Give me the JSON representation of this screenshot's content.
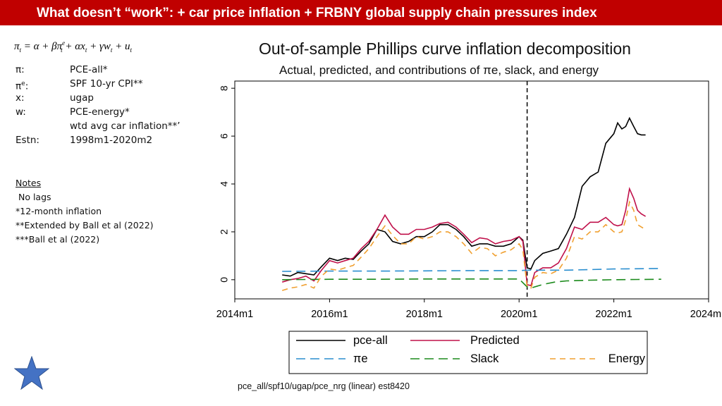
{
  "header": {
    "title": "What doesn’t “work”: + car price inflation + FRBNY global supply chain pressures index"
  },
  "definitions": [
    {
      "key": "π:",
      "value": "PCE-all*"
    },
    {
      "key": "πe:",
      "value": "SPF 10-yr CPI**"
    },
    {
      "key": "x:",
      "value": "ugap"
    },
    {
      "key": "w:",
      "value": "PCE-energy*"
    },
    {
      "key": "",
      "value": "wtd avg car inflation**’"
    },
    {
      "key": "Estn:",
      "value": "1998m1-2020m2"
    }
  ],
  "notes": {
    "heading": "Notes",
    "lines": [
      " No lags",
      "*12-month inflation",
      "**Extended by Ball et al (2022)",
      "***Ball et al (2022)"
    ]
  },
  "caption": "pce_all/spf10/ugap/pce_nrg (linear) est8420",
  "chart_data": {
    "type": "line",
    "title": "Out-of-sample Phillips curve inflation decomposition",
    "subtitle": "Actual, predicted, and contributions of πe, slack, and energy",
    "xlabel": "",
    "ylabel": "",
    "x_ticks": [
      "2014m1",
      "2016m1",
      "2018m1",
      "2020m1",
      "2022m1",
      "2024m1"
    ],
    "x_tick_values": [
      2014,
      2016,
      2018,
      2020,
      2022,
      2024
    ],
    "y_ticks": [
      0,
      2,
      4,
      6,
      8
    ],
    "xlim": [
      2014,
      2024
    ],
    "ylim": [
      -0.8,
      8.3
    ],
    "forecast_start": 2020.17,
    "series": [
      {
        "name": "pce-all",
        "color": "#000000",
        "dash": "solid",
        "x": [
          2015.0,
          2015.17,
          2015.33,
          2015.5,
          2015.67,
          2015.83,
          2016.0,
          2016.17,
          2016.33,
          2016.5,
          2016.67,
          2016.83,
          2017.0,
          2017.17,
          2017.33,
          2017.5,
          2017.67,
          2017.83,
          2018.0,
          2018.17,
          2018.33,
          2018.5,
          2018.67,
          2018.83,
          2019.0,
          2019.17,
          2019.33,
          2019.5,
          2019.67,
          2019.83,
          2020.0,
          2020.08,
          2020.17,
          2020.25,
          2020.33,
          2020.5,
          2020.67,
          2020.83,
          2021.0,
          2021.17,
          2021.33,
          2021.5,
          2021.67,
          2021.83,
          2022.0,
          2022.08,
          2022.17,
          2022.25,
          2022.33,
          2022.42,
          2022.5,
          2022.58,
          2022.67
        ],
        "y": [
          0.2,
          0.15,
          0.3,
          0.25,
          0.2,
          0.55,
          0.9,
          0.8,
          0.9,
          0.85,
          1.2,
          1.5,
          2.1,
          2.0,
          1.6,
          1.5,
          1.6,
          1.8,
          1.8,
          2.0,
          2.3,
          2.3,
          2.1,
          1.8,
          1.4,
          1.5,
          1.5,
          1.4,
          1.4,
          1.5,
          1.8,
          1.65,
          0.5,
          0.45,
          0.8,
          1.1,
          1.2,
          1.3,
          1.9,
          2.6,
          3.9,
          4.3,
          4.5,
          5.7,
          6.1,
          6.55,
          6.3,
          6.4,
          6.75,
          6.4,
          6.1,
          6.05,
          6.05
        ]
      },
      {
        "name": "Predicted",
        "color": "#c0104a",
        "dash": "solid",
        "x": [
          2015.0,
          2015.17,
          2015.33,
          2015.5,
          2015.67,
          2015.83,
          2016.0,
          2016.17,
          2016.33,
          2016.5,
          2016.67,
          2016.83,
          2017.0,
          2017.17,
          2017.33,
          2017.5,
          2017.67,
          2017.83,
          2018.0,
          2018.17,
          2018.33,
          2018.5,
          2018.67,
          2018.83,
          2019.0,
          2019.17,
          2019.33,
          2019.5,
          2019.67,
          2019.83,
          2020.0,
          2020.08,
          2020.17,
          2020.25,
          2020.33,
          2020.5,
          2020.67,
          2020.83,
          2021.0,
          2021.17,
          2021.33,
          2021.5,
          2021.67,
          2021.83,
          2022.0,
          2022.08,
          2022.17,
          2022.25,
          2022.33,
          2022.42,
          2022.5,
          2022.58,
          2022.67
        ],
        "y": [
          -0.1,
          0.0,
          0.05,
          0.15,
          -0.05,
          0.4,
          0.8,
          0.7,
          0.8,
          0.9,
          1.3,
          1.6,
          2.1,
          2.7,
          2.2,
          1.9,
          1.9,
          2.1,
          2.1,
          2.2,
          2.35,
          2.4,
          2.2,
          1.9,
          1.55,
          1.75,
          1.7,
          1.5,
          1.6,
          1.65,
          1.8,
          1.6,
          -0.2,
          -0.25,
          0.3,
          0.5,
          0.5,
          0.7,
          1.3,
          2.2,
          2.1,
          2.4,
          2.4,
          2.6,
          2.3,
          2.25,
          2.3,
          2.9,
          3.8,
          3.4,
          2.9,
          2.75,
          2.65
        ]
      },
      {
        "name": "πe",
        "color": "#2a8ecf",
        "dash": "long-dash",
        "x": [
          2015.0,
          2016.0,
          2017.0,
          2018.0,
          2019.0,
          2020.0,
          2020.17,
          2021.0,
          2022.0,
          2023.0
        ],
        "y": [
          0.35,
          0.36,
          0.36,
          0.37,
          0.38,
          0.38,
          0.4,
          0.4,
          0.45,
          0.47
        ]
      },
      {
        "name": "Slack",
        "color": "#1b8a1b",
        "dash": "long-dash",
        "x": [
          2015.0,
          2016.0,
          2017.0,
          2018.0,
          2019.0,
          2020.0,
          2020.17,
          2020.25,
          2020.33,
          2020.5,
          2020.75,
          2021.0,
          2021.5,
          2022.0,
          2022.5,
          2023.0
        ],
        "y": [
          0.0,
          0.02,
          0.02,
          0.03,
          0.03,
          0.03,
          -0.3,
          -0.35,
          -0.3,
          -0.2,
          -0.1,
          -0.05,
          -0.02,
          0.0,
          0.01,
          0.02
        ]
      },
      {
        "name": "Energy",
        "color": "#f0a030",
        "dash": "dash",
        "x": [
          2015.0,
          2015.17,
          2015.33,
          2015.5,
          2015.67,
          2015.83,
          2016.0,
          2016.17,
          2016.33,
          2016.5,
          2016.67,
          2016.83,
          2017.0,
          2017.17,
          2017.33,
          2017.5,
          2017.67,
          2017.83,
          2018.0,
          2018.17,
          2018.33,
          2018.5,
          2018.67,
          2018.83,
          2019.0,
          2019.17,
          2019.33,
          2019.5,
          2019.67,
          2019.83,
          2020.0,
          2020.08,
          2020.17,
          2020.25,
          2020.33,
          2020.5,
          2020.67,
          2020.83,
          2021.0,
          2021.17,
          2021.33,
          2021.5,
          2021.67,
          2021.83,
          2022.0,
          2022.08,
          2022.17,
          2022.25,
          2022.33,
          2022.42,
          2022.5,
          2022.58,
          2022.67
        ],
        "y": [
          -0.45,
          -0.35,
          -0.3,
          -0.2,
          -0.35,
          0.15,
          0.45,
          0.4,
          0.5,
          0.6,
          0.95,
          1.3,
          1.8,
          2.25,
          1.85,
          1.5,
          1.5,
          1.8,
          1.7,
          1.8,
          2.0,
          2.0,
          1.8,
          1.5,
          1.1,
          1.35,
          1.3,
          1.0,
          1.15,
          1.25,
          1.5,
          1.25,
          -0.3,
          -0.35,
          0.1,
          0.3,
          0.25,
          0.4,
          0.9,
          1.8,
          1.7,
          2.0,
          2.0,
          2.3,
          2.0,
          1.95,
          2.0,
          2.5,
          3.25,
          2.9,
          2.3,
          2.2,
          2.1
        ]
      }
    ]
  },
  "colors": {
    "banner": "#c00000",
    "star": "#4472c4"
  }
}
